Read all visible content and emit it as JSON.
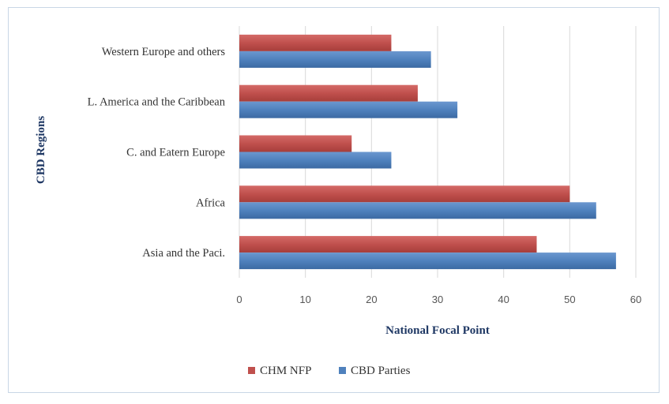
{
  "chart_data": {
    "type": "bar",
    "orientation": "horizontal",
    "title": "",
    "categories": [
      "Asia and the Paci.",
      "Africa",
      "C. and Eatern Europe",
      "L. America and the Caribbean",
      "Western Europe and others"
    ],
    "series": [
      {
        "name": "CHM NFP",
        "color": "#c0504d",
        "values": [
          45,
          50,
          17,
          27,
          23
        ]
      },
      {
        "name": "CBD Parties",
        "color": "#4f81bd",
        "values": [
          57,
          54,
          23,
          33,
          29
        ]
      }
    ],
    "xlabel": "National Focal Point",
    "ylabel": "CBD Regions",
    "xlim": [
      0,
      60
    ],
    "xticks": [
      0,
      10,
      20,
      30,
      40,
      50,
      60
    ],
    "grid": true,
    "legend": "bottom"
  }
}
